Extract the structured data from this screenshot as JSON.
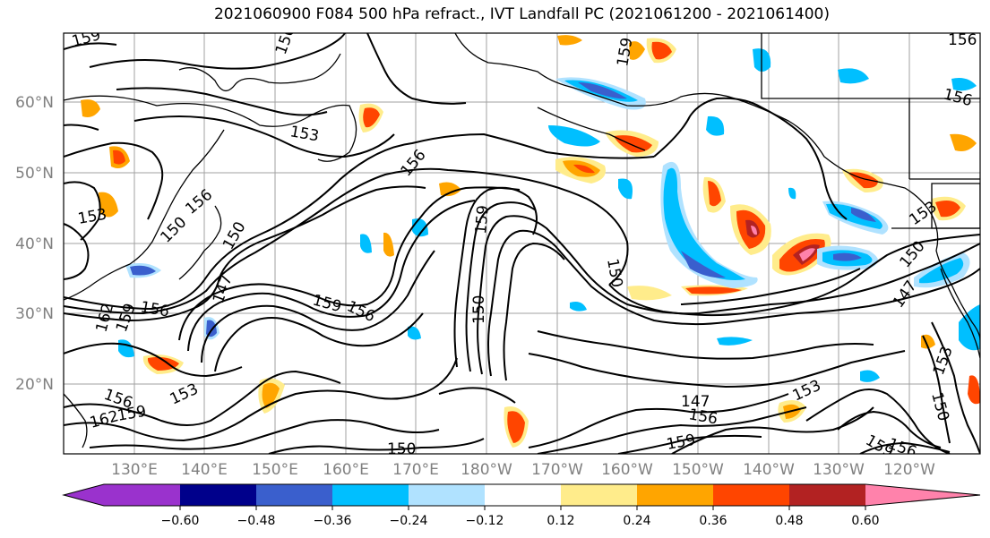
{
  "title": "2021060900 F084 500 hPa refract., IVT Landfall PC (2021061200 - 2021061400)",
  "map": {
    "lat_labels": [
      "60°N",
      "50°N",
      "40°N",
      "30°N",
      "20°N"
    ],
    "lon_labels": [
      "130°E",
      "140°E",
      "150°E",
      "160°E",
      "170°E",
      "180°W",
      "170°W",
      "160°W",
      "150°W",
      "140°W",
      "130°W",
      "120°W"
    ],
    "contour_labels": [
      "159",
      "156",
      "153",
      "156",
      "156",
      "150",
      "153",
      "150",
      "147",
      "159",
      "156",
      "162",
      "159",
      "156",
      "156",
      "150",
      "159",
      "150",
      "153",
      "153",
      "156",
      "162",
      "159",
      "147",
      "156",
      "159",
      "153",
      "150",
      "156",
      "147",
      "150",
      "159",
      "153",
      "159",
      "156",
      "150"
    ]
  },
  "colorbar": {
    "tick_labels": [
      "−0.60",
      "−0.48",
      "−0.36",
      "−0.24",
      "−0.12",
      "0.12",
      "0.24",
      "0.36",
      "0.48",
      "0.60"
    ],
    "colors": [
      "#9a32cd",
      "#00008b",
      "#3a5fcd",
      "#00bfff",
      "#b0e2ff",
      "#ffffff",
      "#ffec8b",
      "#ffa500",
      "#ff4500",
      "#b22222",
      "#ff82ab"
    ]
  }
}
